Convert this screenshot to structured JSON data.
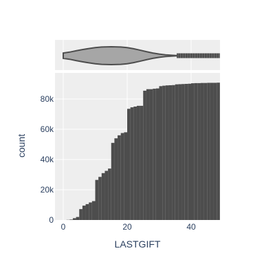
{
  "chart_data": {
    "type": "histogram",
    "cumulative": true,
    "xlabel": "LASTGIFT",
    "ylabel": "count",
    "xlim": [
      0,
      49
    ],
    "ylim": [
      0,
      96000
    ],
    "x_ticks": [
      {
        "value": 0,
        "label": "0"
      },
      {
        "value": 20,
        "label": "20"
      },
      {
        "value": 40,
        "label": "40"
      }
    ],
    "y_ticks": [
      {
        "value": 0,
        "label": "0"
      },
      {
        "value": 20000,
        "label": "20k"
      },
      {
        "value": 40000,
        "label": "40k"
      },
      {
        "value": 60000,
        "label": "60k"
      },
      {
        "value": 80000,
        "label": "80k"
      }
    ],
    "bin_width": 1,
    "bins": [
      {
        "x": 0,
        "y": 0
      },
      {
        "x": 1,
        "y": 100
      },
      {
        "x": 2,
        "y": 300
      },
      {
        "x": 3,
        "y": 1200
      },
      {
        "x": 4,
        "y": 2000
      },
      {
        "x": 5,
        "y": 7200
      },
      {
        "x": 6,
        "y": 9500
      },
      {
        "x": 7,
        "y": 10500
      },
      {
        "x": 8,
        "y": 11600
      },
      {
        "x": 9,
        "y": 12500
      },
      {
        "x": 10,
        "y": 26500
      },
      {
        "x": 11,
        "y": 28500
      },
      {
        "x": 12,
        "y": 31000
      },
      {
        "x": 13,
        "y": 32500
      },
      {
        "x": 14,
        "y": 34000
      },
      {
        "x": 15,
        "y": 51000
      },
      {
        "x": 16,
        "y": 54000
      },
      {
        "x": 17,
        "y": 56000
      },
      {
        "x": 18,
        "y": 57500
      },
      {
        "x": 19,
        "y": 58000
      },
      {
        "x": 20,
        "y": 73500
      },
      {
        "x": 21,
        "y": 74500
      },
      {
        "x": 22,
        "y": 75000
      },
      {
        "x": 23,
        "y": 75500
      },
      {
        "x": 24,
        "y": 75500
      },
      {
        "x": 25,
        "y": 85500
      },
      {
        "x": 26,
        "y": 86500
      },
      {
        "x": 27,
        "y": 86500
      },
      {
        "x": 28,
        "y": 86800
      },
      {
        "x": 29,
        "y": 87000
      },
      {
        "x": 30,
        "y": 88500
      },
      {
        "x": 31,
        "y": 88800
      },
      {
        "x": 32,
        "y": 89000
      },
      {
        "x": 33,
        "y": 89100
      },
      {
        "x": 34,
        "y": 89200
      },
      {
        "x": 35,
        "y": 89700
      },
      {
        "x": 36,
        "y": 89800
      },
      {
        "x": 37,
        "y": 89900
      },
      {
        "x": 38,
        "y": 90000
      },
      {
        "x": 39,
        "y": 90100
      },
      {
        "x": 40,
        "y": 90400
      },
      {
        "x": 41,
        "y": 90500
      },
      {
        "x": 42,
        "y": 90500
      },
      {
        "x": 43,
        "y": 90600
      },
      {
        "x": 44,
        "y": 90600
      },
      {
        "x": 45,
        "y": 90700
      },
      {
        "x": 46,
        "y": 90700
      },
      {
        "x": 47,
        "y": 90700
      },
      {
        "x": 48,
        "y": 90800
      }
    ],
    "marginal": {
      "type": "violin",
      "axis": "x",
      "profile": [
        [
          0,
          0.3
        ],
        [
          2,
          0.4
        ],
        [
          4,
          0.55
        ],
        [
          6,
          0.68
        ],
        [
          8,
          0.8
        ],
        [
          10,
          0.9
        ],
        [
          12,
          0.97
        ],
        [
          15,
          1.0
        ],
        [
          18,
          0.97
        ],
        [
          20,
          0.9
        ],
        [
          22,
          0.78
        ],
        [
          24,
          0.62
        ],
        [
          26,
          0.45
        ],
        [
          28,
          0.3
        ],
        [
          30,
          0.18
        ],
        [
          32,
          0.1
        ],
        [
          34,
          0.05
        ],
        [
          35.5,
          0.02
        ]
      ],
      "outlier_range": [
        35.5,
        49
      ]
    },
    "colors": {
      "bars": "#4d4d4d",
      "violin_fill": "#a6a6a6",
      "violin_line": "#4d4d4d",
      "plot_bg": "#eeeeee",
      "grid": "#ffffff",
      "text": "#2a3f5f"
    },
    "grid": true
  }
}
